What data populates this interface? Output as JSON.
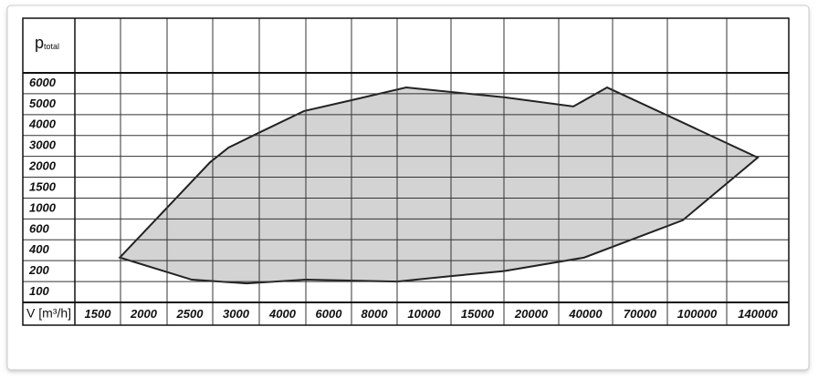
{
  "chart_data": {
    "type": "area",
    "ylabel": "p",
    "ylabel_sub": "total",
    "xlabel": "V [m³/h]",
    "xticks": [
      1500,
      2000,
      2500,
      3000,
      4000,
      6000,
      8000,
      10000,
      15000,
      20000,
      40000,
      70000,
      100000,
      140000
    ],
    "yticks": [
      6000,
      5000,
      4000,
      3000,
      2000,
      1500,
      1000,
      600,
      400,
      200,
      100
    ],
    "grid": true,
    "series": [
      {
        "color": "#d3d3d3",
        "x": [
          1740,
          2720,
          2920,
          3520,
          4930,
          7000,
          9280,
          17460,
          35460,
          51850,
          87760,
          140000,
          92500,
          39500,
          17460,
          12520,
          8920,
          5010,
          3230,
          2520
        ],
        "values": [
          330,
          2220,
          2920,
          3660,
          4670,
          5190,
          5800,
          5330,
          4890,
          5800,
          4320,
          2440,
          775,
          330,
          200,
          176,
          150,
          159,
          141,
          159
        ]
      }
    ]
  }
}
